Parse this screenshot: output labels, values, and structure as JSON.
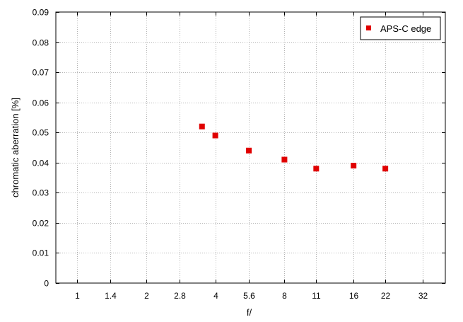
{
  "chart_data": {
    "type": "scatter",
    "xlabel": "f/",
    "ylabel": "chromatic aberration [%]",
    "x_scale": "log2",
    "x_ticks": [
      {
        "value": 1,
        "label": "1"
      },
      {
        "value": 1.4,
        "label": "1.4"
      },
      {
        "value": 2,
        "label": "2"
      },
      {
        "value": 2.8,
        "label": "2.8"
      },
      {
        "value": 4,
        "label": "4"
      },
      {
        "value": 5.6,
        "label": "5.6"
      },
      {
        "value": 8,
        "label": "8"
      },
      {
        "value": 11,
        "label": "11"
      },
      {
        "value": 16,
        "label": "16"
      },
      {
        "value": 22,
        "label": "22"
      },
      {
        "value": 32,
        "label": "32"
      }
    ],
    "y_ticks": [
      "0",
      "0.01",
      "0.02",
      "0.03",
      "0.04",
      "0.05",
      "0.06",
      "0.07",
      "0.08",
      "0.09"
    ],
    "ylim": [
      0,
      0.09
    ],
    "grid": true,
    "legend_position": "top-right",
    "series": [
      {
        "name": "APS-C edge",
        "color": "#e00000",
        "marker": "square",
        "points": [
          {
            "x": 3.5,
            "y": 0.052
          },
          {
            "x": 4,
            "y": 0.049
          },
          {
            "x": 5.6,
            "y": 0.044
          },
          {
            "x": 8,
            "y": 0.041
          },
          {
            "x": 11,
            "y": 0.038
          },
          {
            "x": 16,
            "y": 0.039
          },
          {
            "x": 22,
            "y": 0.038
          }
        ]
      }
    ]
  }
}
